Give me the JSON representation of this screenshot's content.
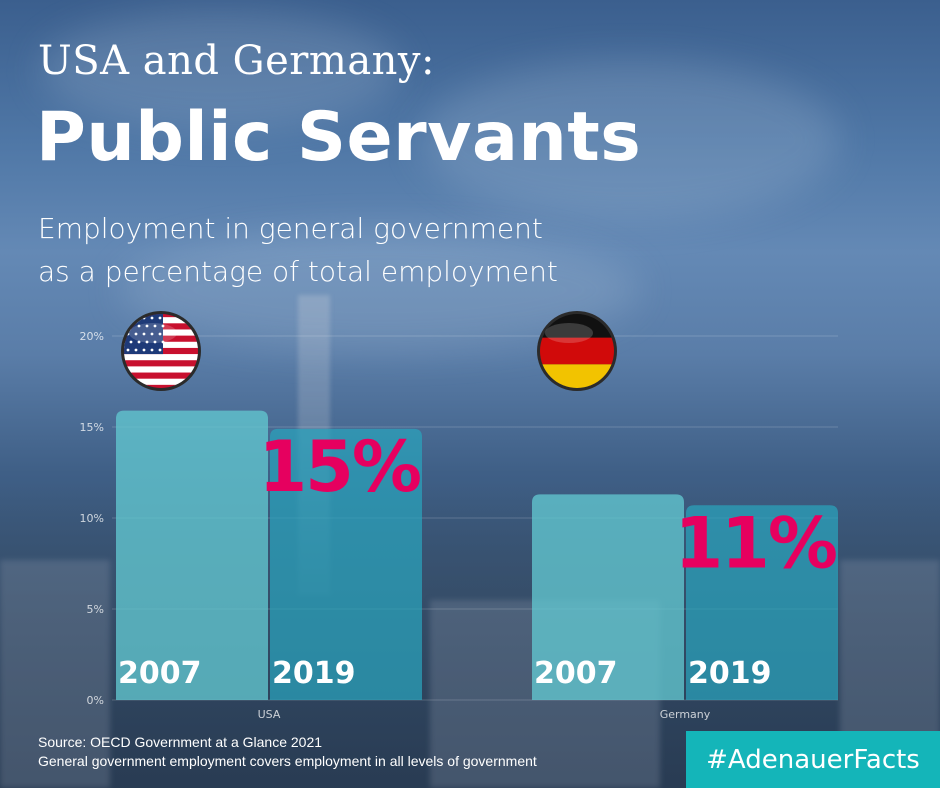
{
  "header": {
    "title_line1": "USA and Germany:",
    "title_line2": "Public Servants",
    "subtitle_line1": "Employment in general government",
    "subtitle_line2": "as a percentage of total employment"
  },
  "footer": {
    "source": "Source: OECD Government at a Glance 2021",
    "note": "General government employment covers employment in all levels of government",
    "hashtag": "#AdenauerFacts"
  },
  "colors": {
    "bar_2007": "#62c7cf",
    "bar_2019": "#2aa3bd",
    "highlight": "#e6005f",
    "hashtag_bg": "#14b5b9"
  },
  "chart_data": {
    "type": "bar",
    "title": "Employment in general government as a percentage of total employment",
    "categories": [
      "USA",
      "Germany"
    ],
    "series": [
      {
        "name": "2007",
        "values": [
          15.9,
          11.3
        ]
      },
      {
        "name": "2019",
        "values": [
          14.9,
          10.7
        ]
      }
    ],
    "value_labels": {
      "USA": "15%",
      "Germany": "11%"
    },
    "yticks": [
      "0%",
      "5%",
      "10%",
      "15%",
      "20%"
    ],
    "ylim": [
      0,
      20
    ],
    "flags": [
      "usa-flag",
      "germany-flag"
    ],
    "xlabel": "",
    "ylabel": "",
    "grid": true
  }
}
